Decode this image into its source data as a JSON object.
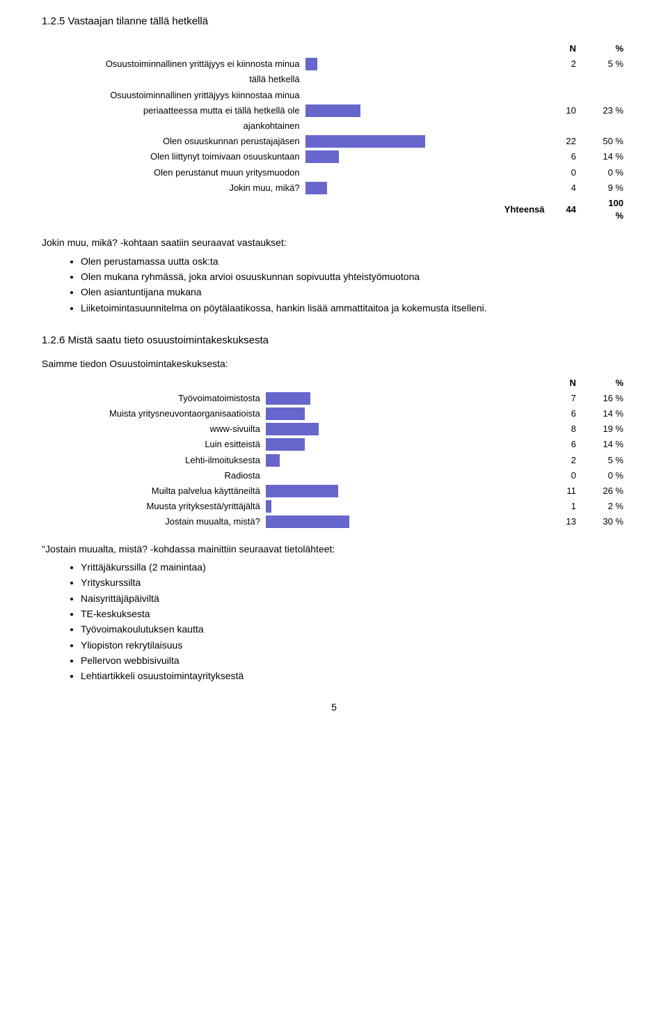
{
  "chart1": {
    "title": "1.2.5 Vastaajan tilanne tällä hetkellä",
    "type": "bar",
    "header_n": "N",
    "header_pct": "%",
    "bar_color": "#6666cc",
    "bg_color": "#ffffff",
    "max_pct": 100,
    "rows": [
      {
        "label_lines": [
          "Osuustoiminnallinen yrittäjyys ei kiinnosta minua",
          "tällä hetkellä"
        ],
        "n": "2",
        "pct": "5 %",
        "bar_pct": 5
      },
      {
        "label_lines": [
          "Osuustoiminnallinen yrittäjyys kiinnostaa minua",
          "periaatteessa mutta ei tällä hetkellä ole",
          "ajankohtainen"
        ],
        "n": "10",
        "pct": "23 %",
        "bar_pct": 23
      },
      {
        "label_lines": [
          "Olen osuuskunnan perustajajäsen"
        ],
        "n": "22",
        "pct": "50 %",
        "bar_pct": 50
      },
      {
        "label_lines": [
          "Olen liittynyt toimivaan osuuskuntaan"
        ],
        "n": "6",
        "pct": "14 %",
        "bar_pct": 14
      },
      {
        "label_lines": [
          "Olen perustanut muun yritysmuodon"
        ],
        "n": "0",
        "pct": "0 %",
        "bar_pct": 0
      },
      {
        "label_lines": [
          "Jokin muu, mikä?"
        ],
        "n": "4",
        "pct": "9 %",
        "bar_pct": 9
      }
    ],
    "total_label": "Yhteensä",
    "total_n": "44",
    "total_pct_top": "100",
    "total_pct_bottom": "%"
  },
  "followup1": {
    "intro": "Jokin muu, mikä? -kohtaan saatiin seuraavat vastaukset:",
    "items": [
      "Olen perustamassa uutta osk:ta",
      "Olen mukana ryhmässä, joka arvioi osuuskunnan sopivuutta yhteistyömuotona",
      "Olen asiantuntijana mukana",
      "Liiketoimintasuunnitelma on pöytälaatikossa, hankin lisää ammattitaitoa ja kokemusta itselleni."
    ]
  },
  "chart2": {
    "title": "1.2.6 Mistä saatu tieto osuustoimintakeskuksesta",
    "subtitle": "Saimme tiedon Osuustoimintakeskuksesta:",
    "type": "bar",
    "header_n": "N",
    "header_pct": "%",
    "bar_color": "#6666cc",
    "bg_color": "#ffffff",
    "max_pct": 100,
    "rows": [
      {
        "label": "Työvoimatoimistosta",
        "n": "7",
        "pct": "16 %",
        "bar_pct": 16
      },
      {
        "label": "Muista yritysneuvontaorganisaatioista",
        "n": "6",
        "pct": "14 %",
        "bar_pct": 14
      },
      {
        "label": "www-sivuilta",
        "n": "8",
        "pct": "19 %",
        "bar_pct": 19
      },
      {
        "label": "Luin esitteistä",
        "n": "6",
        "pct": "14 %",
        "bar_pct": 14
      },
      {
        "label": "Lehti-ilmoituksesta",
        "n": "2",
        "pct": "5 %",
        "bar_pct": 5
      },
      {
        "label": "Radiosta",
        "n": "0",
        "pct": "0 %",
        "bar_pct": 0
      },
      {
        "label": "Muilta palvelua käyttäneiltä",
        "n": "11",
        "pct": "26 %",
        "bar_pct": 26
      },
      {
        "label": "Muusta yrityksestä/yrittäjältä",
        "n": "1",
        "pct": "2 %",
        "bar_pct": 2
      },
      {
        "label": "Jostain muualta, mistä?",
        "n": "13",
        "pct": "30 %",
        "bar_pct": 30
      }
    ]
  },
  "followup2": {
    "intro": "\"Jostain muualta, mistä? -kohdassa mainittiin seuraavat tietolähteet:",
    "items": [
      "Yrittäjäkurssilla (2 mainintaa)",
      "Yrityskurssilta",
      "Naisyrittäjäpäiviltä",
      "TE-keskuksesta",
      "Työvoimakoulutuksen kautta",
      "Yliopiston rekrytilaisuus",
      "Pellervon webbisivuilta",
      "Lehtiartikkeli osuustoimintayrityksestä"
    ]
  },
  "page_number": "5"
}
